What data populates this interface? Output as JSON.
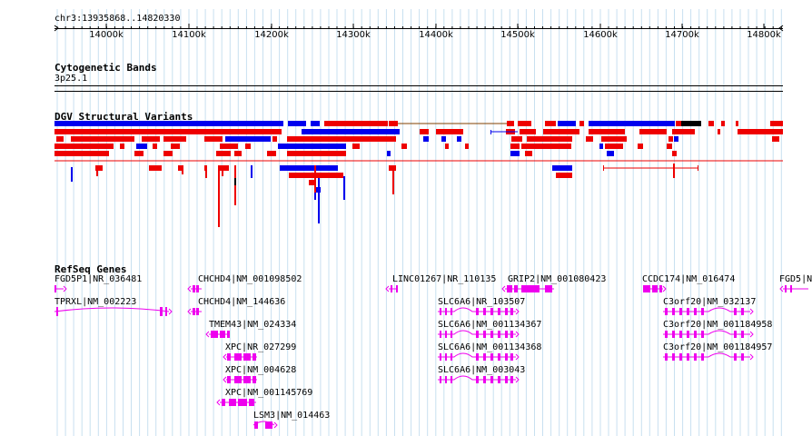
{
  "browser": {
    "locus": "chr3:13935868..14820330",
    "ruler_ticks": [
      "14000k",
      "14100k",
      "14200k",
      "14300k",
      "14400k",
      "14500k",
      "14600k",
      "14700k",
      "14800k"
    ],
    "tracks": {
      "cytoband": {
        "title": "Cytogenetic Bands",
        "band": "3p25.1"
      },
      "dgv": {
        "title": "DGV Structural Variants",
        "gain_color": "#0000ee",
        "loss_color": "#ee0000"
      },
      "refseq": {
        "title": "RefSeq Genes",
        "gene_color": "#ee00ee"
      }
    },
    "genes": [
      "FGD5P1|NR_036481",
      "TPRXL|NM_002223",
      "CHCHD4|NM_001098502",
      "CHCHD4|NM_144636",
      "TMEM43|NM_024334",
      "XPC|NR_027299",
      "XPC|NM_004628",
      "XPC|NM_001145769",
      "LSM3|NM_014463",
      "LINC01267|NR_110135",
      "GRIP2|NM_001080423",
      "SLC6A6|NR_103507",
      "SLC6A6|NM_001134367",
      "SLC6A6|NM_001134368",
      "SLC6A6|NM_003043",
      "CCDC174|NM_016474",
      "C3orf20|NM_032137",
      "C3orf20|NM_001184958",
      "C3orf20|NM_001184957",
      "FGD5|N"
    ]
  }
}
